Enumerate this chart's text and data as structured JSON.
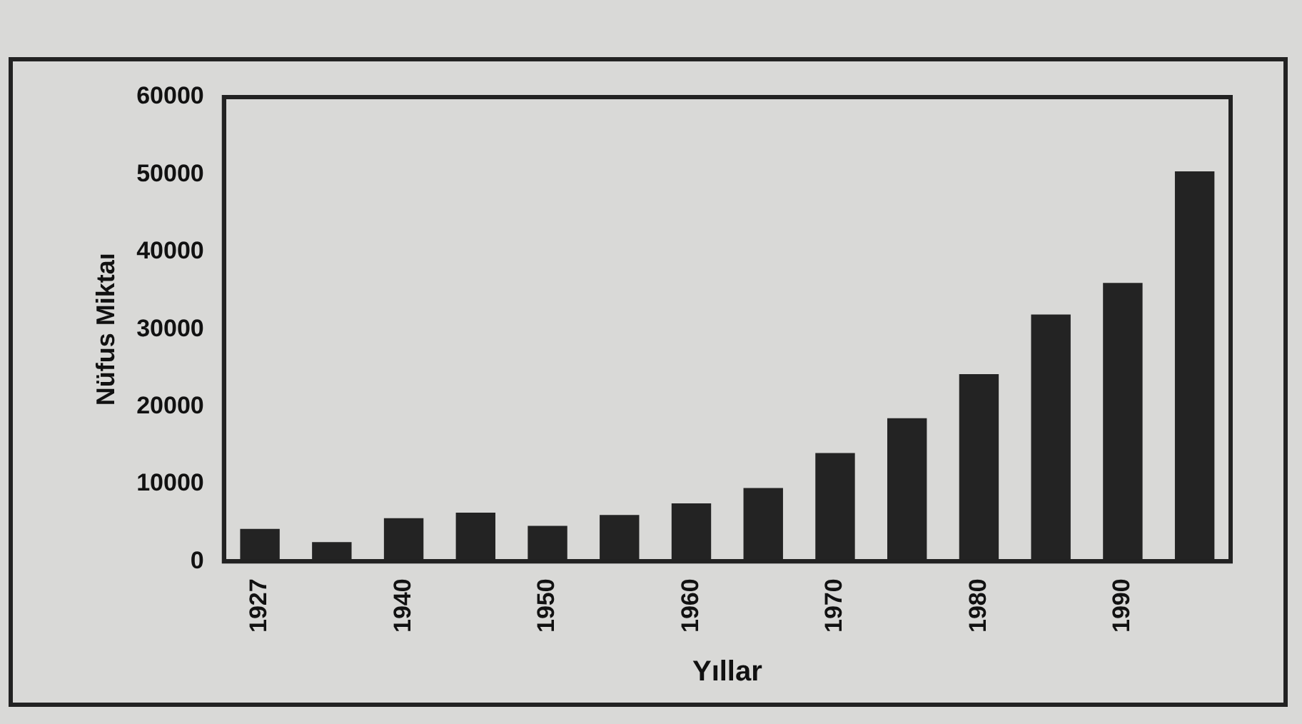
{
  "chart_data": {
    "type": "bar",
    "xlabel": "Yıllar",
    "ylabel": "Nüfus Miktaı",
    "categories": [
      "1927",
      null,
      "1940",
      null,
      "1950",
      null,
      "1960",
      null,
      "1970",
      null,
      "1980",
      null,
      "1990",
      null
    ],
    "values": [
      4200,
      2500,
      5600,
      6300,
      4600,
      6000,
      7500,
      9500,
      14000,
      18500,
      24200,
      31900,
      36000,
      50400
    ],
    "color": "#232323",
    "ylim": [
      0,
      60000
    ],
    "yticks": [
      0,
      10000,
      20000,
      30000,
      40000,
      50000,
      60000
    ],
    "grid": false,
    "legend": false
  }
}
